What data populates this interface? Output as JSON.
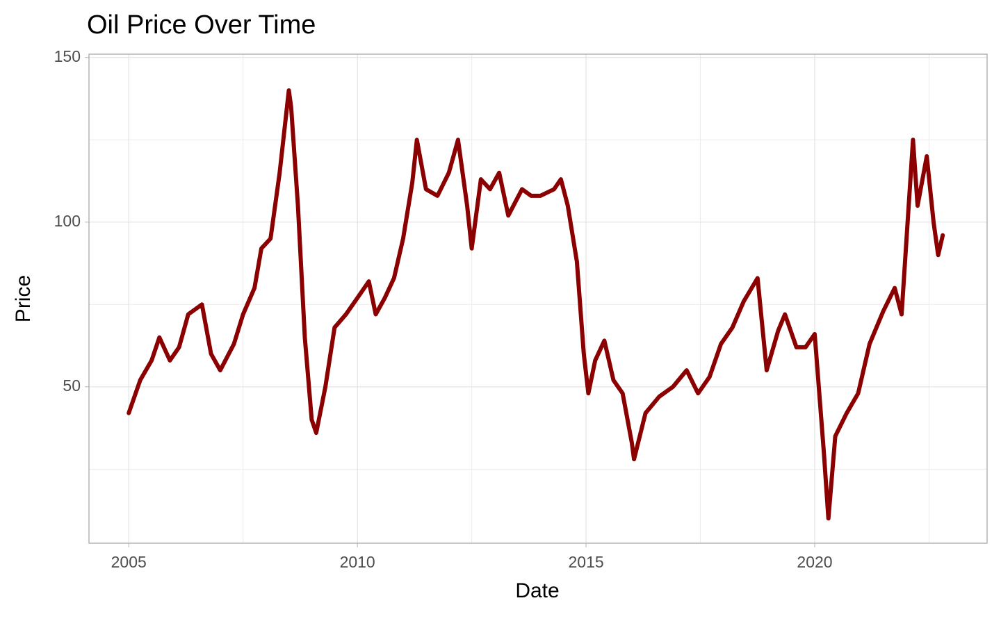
{
  "chart_data": {
    "type": "line",
    "title": "Oil Price Over Time",
    "x_label": "Date",
    "y_label": "Price",
    "x": [
      2005.0,
      2005.25,
      2005.5,
      2005.67,
      2005.9,
      2006.1,
      2006.3,
      2006.6,
      2006.8,
      2007.0,
      2007.3,
      2007.5,
      2007.75,
      2007.9,
      2008.1,
      2008.3,
      2008.5,
      2008.55,
      2008.7,
      2008.85,
      2009.0,
      2009.1,
      2009.3,
      2009.5,
      2009.75,
      2010.0,
      2010.25,
      2010.4,
      2010.6,
      2010.8,
      2011.0,
      2011.2,
      2011.3,
      2011.5,
      2011.75,
      2012.0,
      2012.2,
      2012.4,
      2012.5,
      2012.7,
      2012.9,
      2013.1,
      2013.3,
      2013.6,
      2013.8,
      2014.0,
      2014.3,
      2014.45,
      2014.6,
      2014.8,
      2014.95,
      2015.05,
      2015.2,
      2015.4,
      2015.6,
      2015.8,
      2016.0,
      2016.05,
      2016.3,
      2016.6,
      2016.9,
      2017.2,
      2017.45,
      2017.7,
      2017.95,
      2018.2,
      2018.45,
      2018.75,
      2018.95,
      2019.2,
      2019.35,
      2019.6,
      2019.8,
      2020.0,
      2020.2,
      2020.3,
      2020.45,
      2020.7,
      2020.95,
      2021.2,
      2021.5,
      2021.75,
      2021.9,
      2022.15,
      2022.25,
      2022.45,
      2022.6,
      2022.7,
      2022.8
    ],
    "series": [
      {
        "name": "Price",
        "color": "#8b0000",
        "values": [
          42,
          52,
          58,
          65,
          58,
          62,
          72,
          75,
          60,
          55,
          63,
          72,
          80,
          92,
          95,
          115,
          140,
          135,
          105,
          65,
          40,
          36,
          50,
          68,
          72,
          77,
          82,
          72,
          77,
          83,
          95,
          112,
          125,
          110,
          108,
          115,
          125,
          105,
          92,
          113,
          110,
          115,
          102,
          110,
          108,
          108,
          110,
          113,
          105,
          88,
          60,
          48,
          58,
          64,
          52,
          48,
          33,
          28,
          42,
          47,
          50,
          55,
          48,
          53,
          63,
          68,
          76,
          83,
          55,
          67,
          72,
          62,
          62,
          66,
          30,
          10,
          35,
          42,
          48,
          63,
          73,
          80,
          72,
          125,
          105,
          120,
          100,
          90,
          96
        ]
      }
    ],
    "xlim": [
      2004.13,
      2023.77
    ],
    "xticks": [
      2005,
      2010,
      2015,
      2020
    ],
    "ylim": [
      2.5,
      151
    ],
    "yticks": [
      50,
      100,
      150
    ],
    "grid": true
  }
}
